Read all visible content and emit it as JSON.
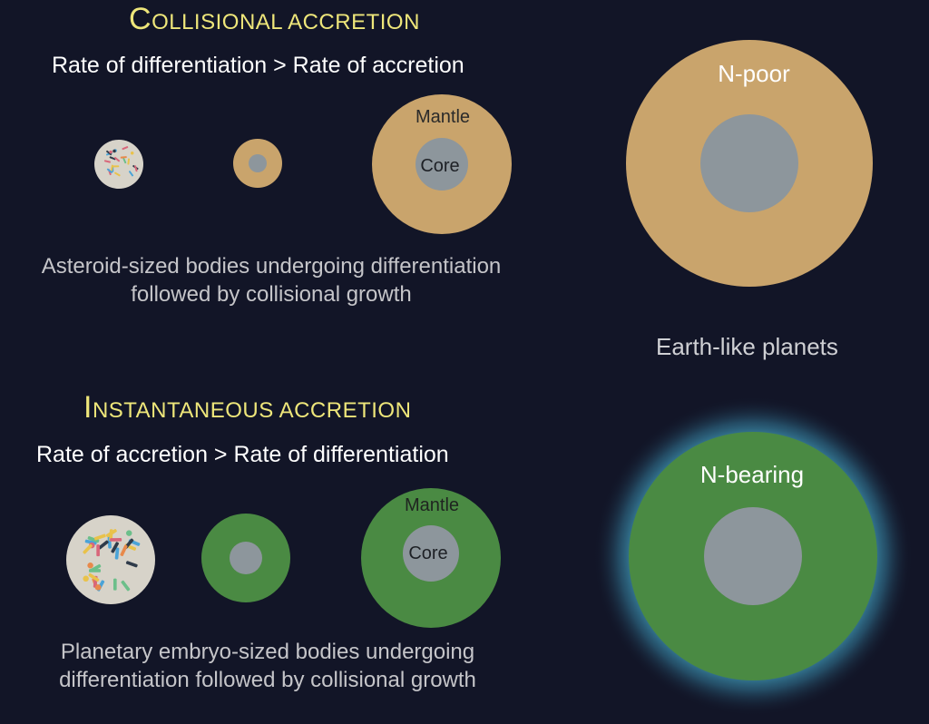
{
  "collisional": {
    "heading_initial": "C",
    "heading_rest": "OLLISIONAL ACCRETION",
    "rate_text": "Rate of differentiation > Rate of accretion",
    "mantle_label": "Mantle",
    "core_label": "Core",
    "caption_line1": "Asteroid-sized bodies undergoing differentiation",
    "caption_line2": "followed by collisional growth",
    "planet_label": "N-poor",
    "mantle_color": "#c9a46c"
  },
  "instantaneous": {
    "heading_initial": "I",
    "heading_rest": "NSTANTANEOUS ACCRETION",
    "rate_text": "Rate of accretion > Rate of differentiation",
    "mantle_label": "Mantle",
    "core_label": "Core",
    "caption_line1": "Planetary embryo-sized bodies undergoing",
    "caption_line2": "differentiation followed by collisional growth",
    "planet_label": "N-bearing",
    "mantle_color": "#4a8a43"
  },
  "earth_like_label": "Earth-like planets",
  "colors": {
    "background": "#121527",
    "heading": "#eee67a",
    "core": "#8d969c",
    "undifferentiated": "#d7d3c9",
    "glow": "#5fd6f0"
  }
}
